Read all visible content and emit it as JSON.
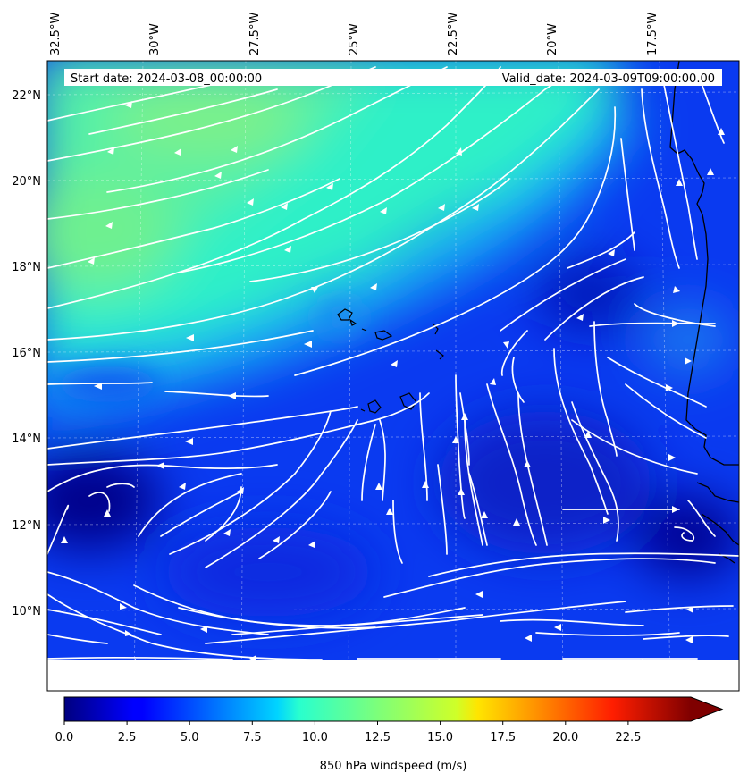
{
  "map": {
    "start_date_label": "Start date: 2024-03-08_00:00:00",
    "valid_date_label": "Valid_date: 2024-03-09T09:00:00.00",
    "lon_labels": [
      "32.5°W",
      "30°W",
      "27.5°W",
      "25°W",
      "22.5°W",
      "20°W",
      "17.5°W"
    ],
    "lat_labels": [
      "22°N",
      "20°N",
      "18°N",
      "16°N",
      "14°N",
      "12°N",
      "10°N"
    ],
    "field": "850 hPa windspeed",
    "land_outline_color": "#000000",
    "streamline_color": "#ffffff"
  },
  "colorbar": {
    "label": "850 hPa windspeed (m/s)",
    "ticks": [
      "0.0",
      "2.5",
      "5.0",
      "7.5",
      "10.0",
      "12.5",
      "15.0",
      "17.5",
      "20.0",
      "22.5"
    ],
    "tick_values": [
      0,
      2.5,
      5,
      7.5,
      10,
      12.5,
      15,
      17.5,
      20,
      22.5
    ],
    "min": 0,
    "max": 25,
    "extend": "max",
    "colormap": "jet"
  }
}
